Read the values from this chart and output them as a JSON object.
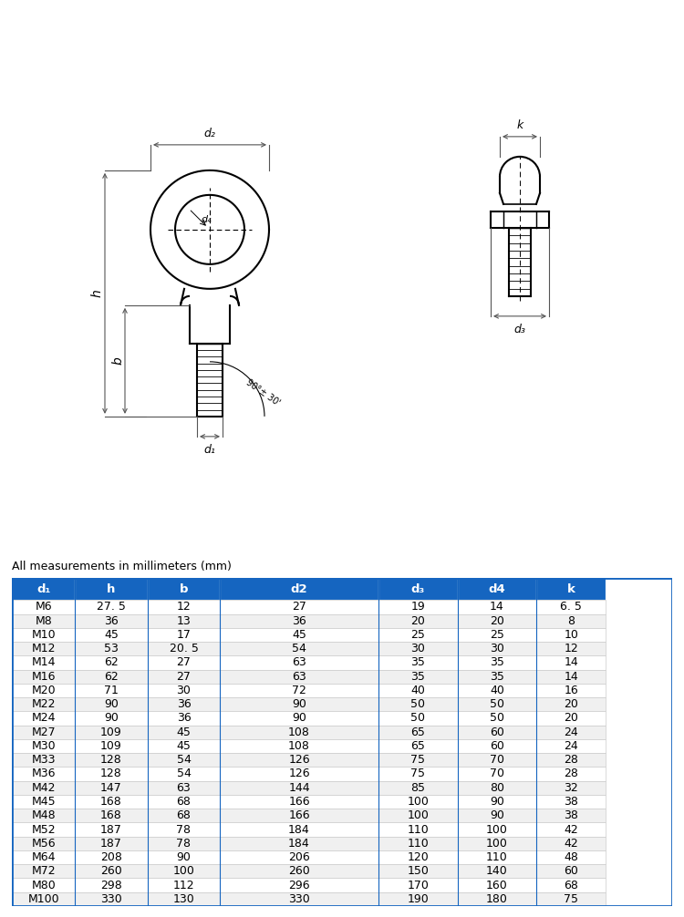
{
  "subtitle": "All measurements in millimeters (mm)",
  "header": [
    "d₁",
    "h",
    "b",
    "d2",
    "d₃",
    "d4",
    "k"
  ],
  "rows": [
    [
      "M6",
      "27. 5",
      "12",
      "27",
      "19",
      "14",
      "6. 5"
    ],
    [
      "M8",
      "36",
      "13",
      "36",
      "20",
      "20",
      "8"
    ],
    [
      "M10",
      "45",
      "17",
      "45",
      "25",
      "25",
      "10"
    ],
    [
      "M12",
      "53",
      "20. 5",
      "54",
      "30",
      "30",
      "12"
    ],
    [
      "M14",
      "62",
      "27",
      "63",
      "35",
      "35",
      "14"
    ],
    [
      "M16",
      "62",
      "27",
      "63",
      "35",
      "35",
      "14"
    ],
    [
      "M20",
      "71",
      "30",
      "72",
      "40",
      "40",
      "16"
    ],
    [
      "M22",
      "90",
      "36",
      "90",
      "50",
      "50",
      "20"
    ],
    [
      "M24",
      "90",
      "36",
      "90",
      "50",
      "50",
      "20"
    ],
    [
      "M27",
      "109",
      "45",
      "108",
      "65",
      "60",
      "24"
    ],
    [
      "M30",
      "109",
      "45",
      "108",
      "65",
      "60",
      "24"
    ],
    [
      "M33",
      "128",
      "54",
      "126",
      "75",
      "70",
      "28"
    ],
    [
      "M36",
      "128",
      "54",
      "126",
      "75",
      "70",
      "28"
    ],
    [
      "M42",
      "147",
      "63",
      "144",
      "85",
      "80",
      "32"
    ],
    [
      "M45",
      "168",
      "68",
      "166",
      "100",
      "90",
      "38"
    ],
    [
      "M48",
      "168",
      "68",
      "166",
      "100",
      "90",
      "38"
    ],
    [
      "M52",
      "187",
      "78",
      "184",
      "110",
      "100",
      "42"
    ],
    [
      "M56",
      "187",
      "78",
      "184",
      "110",
      "100",
      "42"
    ],
    [
      "M64",
      "208",
      "90",
      "206",
      "120",
      "110",
      "48"
    ],
    [
      "M72",
      "260",
      "100",
      "260",
      "150",
      "140",
      "60"
    ],
    [
      "M80",
      "298",
      "112",
      "296",
      "170",
      "160",
      "68"
    ],
    [
      "M100",
      "330",
      "130",
      "330",
      "190",
      "180",
      "75"
    ]
  ],
  "header_bg": "#1565C0",
  "header_fg": "#FFFFFF",
  "row_bg_odd": "#FFFFFF",
  "row_bg_even": "#F0F0F0",
  "grid_line_color": "#CCCCCC",
  "table_border_color": "#1565C0",
  "fig_bg": "#FFFFFF",
  "lc": "#555555",
  "diagram_lw": 1.5,
  "dim_lw": 0.8,
  "bottom_strip_color": "#1565C0"
}
